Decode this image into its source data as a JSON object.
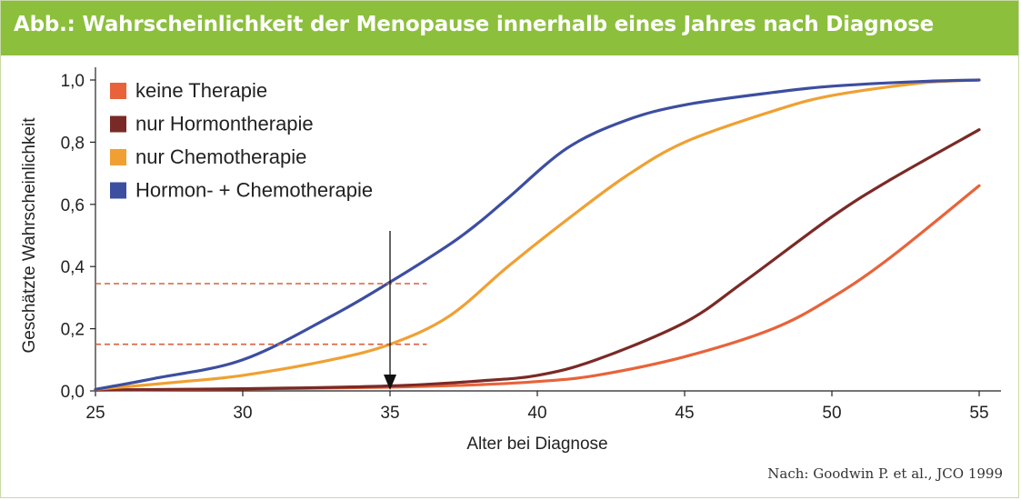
{
  "header": {
    "title": "Abb.: Wahrscheinlichkeit der Menopause innerhalb eines Jahres nach Diagnose"
  },
  "source_note": "Nach: Goodwin P. et al., JCO 1999",
  "colors": {
    "header_bg": "#8cbf3c",
    "keine": "#e8633a",
    "hormon": "#7a2a26",
    "chemo": "#f0a032",
    "kombi": "#3c4ea0",
    "reference": "#d9603a"
  },
  "chart_data": {
    "type": "line",
    "xlabel": "Alter bei Diagnose",
    "ylabel": "Geschätzte Wahrscheinlichkeit",
    "xlim": [
      25,
      55
    ],
    "ylim": [
      0,
      1
    ],
    "x_ticks": [
      25,
      30,
      35,
      40,
      45,
      50,
      55
    ],
    "y_ticks": [
      "0,0",
      "0,2",
      "0,4",
      "0,6",
      "0,8",
      "1,0"
    ],
    "y_tick_values": [
      0,
      0.2,
      0.4,
      0.6,
      0.8,
      1.0
    ],
    "grid": false,
    "legend_position": "top-left",
    "series": [
      {
        "name": "keine Therapie",
        "color": "#e8633a",
        "x": [
          25,
          30,
          35,
          38,
          40,
          42,
          45,
          48,
          50,
          52,
          55
        ],
        "y": [
          0.003,
          0.006,
          0.012,
          0.02,
          0.03,
          0.05,
          0.11,
          0.2,
          0.3,
          0.43,
          0.66
        ]
      },
      {
        "name": "nur Hormontherapie",
        "color": "#7a2a26",
        "x": [
          25,
          30,
          35,
          38,
          40,
          42,
          45,
          47,
          50,
          52,
          55
        ],
        "y": [
          0.003,
          0.007,
          0.016,
          0.032,
          0.05,
          0.1,
          0.22,
          0.35,
          0.56,
          0.68,
          0.84
        ]
      },
      {
        "name": "nur Chemotherapie",
        "color": "#f0a032",
        "x": [
          25,
          28,
          30,
          33,
          35,
          37,
          39,
          41,
          43,
          45,
          48,
          50,
          53,
          55
        ],
        "y": [
          0.005,
          0.03,
          0.05,
          0.1,
          0.15,
          0.24,
          0.4,
          0.55,
          0.69,
          0.8,
          0.9,
          0.95,
          0.99,
          1.0
        ]
      },
      {
        "name": "Hormon- + Chemotherapie",
        "color": "#3c4ea0",
        "x": [
          25,
          27,
          30,
          33,
          35,
          37,
          38,
          39,
          41,
          43,
          45,
          48,
          50,
          53,
          55
        ],
        "y": [
          0.005,
          0.04,
          0.1,
          0.24,
          0.35,
          0.47,
          0.54,
          0.62,
          0.78,
          0.87,
          0.92,
          0.96,
          0.98,
          0.995,
          1.0
        ]
      }
    ],
    "annotations": {
      "arrow_x": 35,
      "reference_lines": [
        {
          "y": 0.345,
          "x_end": 36
        },
        {
          "y": 0.15,
          "x_end": 36
        }
      ]
    }
  }
}
